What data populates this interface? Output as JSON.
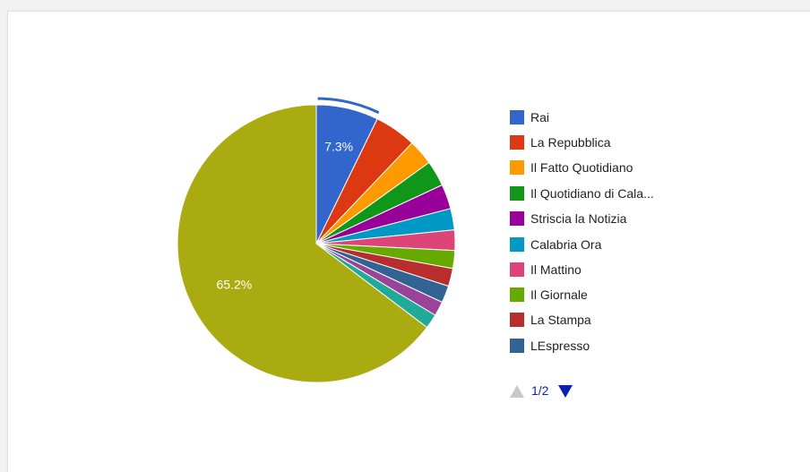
{
  "chart_data": {
    "type": "pie",
    "series": [
      {
        "name": "Rai",
        "value": 7.3,
        "color": "#3366cc"
      },
      {
        "name": "La Repubblica",
        "value": 4.9,
        "color": "#dc3912"
      },
      {
        "name": "Il Fatto Quotidiano",
        "value": 3.0,
        "color": "#ff9900"
      },
      {
        "name": "Il Quotidiano di Cala...",
        "value": 3.0,
        "color": "#109618"
      },
      {
        "name": "Striscia la Notizia",
        "value": 2.9,
        "color": "#990099"
      },
      {
        "name": "Calabria Ora",
        "value": 2.5,
        "color": "#0099c6"
      },
      {
        "name": "Il Mattino",
        "value": 2.4,
        "color": "#dd4477"
      },
      {
        "name": "Il Giornale",
        "value": 2.1,
        "color": "#66aa00"
      },
      {
        "name": "La Stampa",
        "value": 2.1,
        "color": "#b82e2e"
      },
      {
        "name": "LEspresso",
        "value": 2.0,
        "color": "#316395"
      },
      {
        "name": "",
        "value": 1.7,
        "color": "#994499"
      },
      {
        "name": "",
        "value": 1.7,
        "color": "#22aa99"
      },
      {
        "name": "",
        "value": 65.2,
        "color": "#aaaa11"
      }
    ],
    "data_labels": [
      {
        "slice": 0,
        "text": "7.3%"
      },
      {
        "slice": 12,
        "text": "65.2%"
      }
    ],
    "highlighted_slice": 0,
    "legend_position": "right"
  },
  "legend": {
    "items": [
      "Rai",
      "La Repubblica",
      "Il Fatto Quotidiano",
      "Il Quotidiano di Cala...",
      "Striscia la Notizia",
      "Calabria Ora",
      "Il Mattino",
      "Il Giornale",
      "La Stampa",
      "LEspresso"
    ]
  },
  "pager": {
    "label": "1/2",
    "prev_icon": "triangle-up-icon",
    "next_icon": "triangle-down-icon"
  }
}
